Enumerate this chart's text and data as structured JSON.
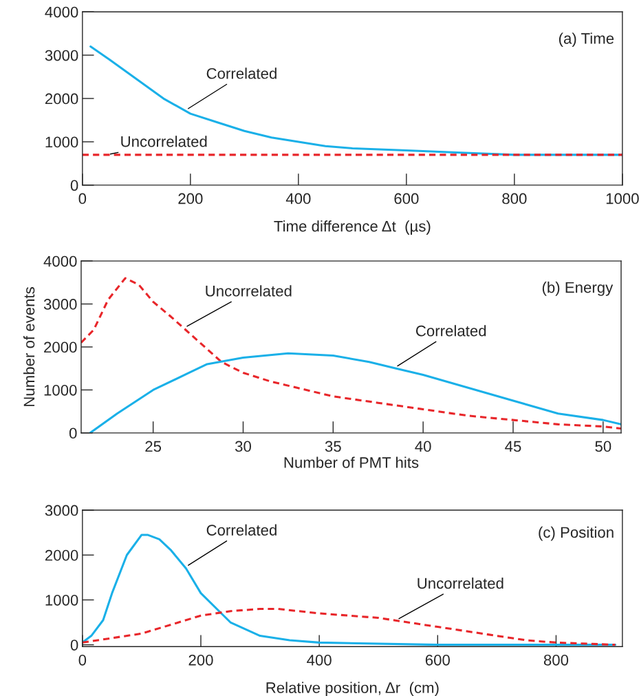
{
  "chart_data": [
    {
      "type": "line",
      "xlabel": "Time difference Δt  (µs)",
      "xlim": [
        0,
        1000
      ],
      "ylim": [
        0,
        4000
      ],
      "xticks": [
        0,
        200,
        400,
        600,
        800,
        1000
      ],
      "yticks": [
        0,
        1000,
        2000,
        3000,
        4000
      ],
      "grid": false,
      "legend": false,
      "annotations": [
        "(a) Time"
      ],
      "series": [
        {
          "name": "Correlated",
          "color": "#1ab0e8",
          "line_style": "solid",
          "x": [
            15,
            50,
            100,
            150,
            200,
            250,
            300,
            350,
            400,
            450,
            500,
            600,
            700,
            800,
            900,
            1000
          ],
          "values": [
            3200,
            2900,
            2450,
            2000,
            1650,
            1450,
            1250,
            1100,
            1000,
            900,
            850,
            800,
            750,
            700,
            700,
            700
          ]
        },
        {
          "name": "Uncorrelated",
          "color": "#e8262a",
          "line_style": "dashed",
          "x": [
            0,
            1000
          ],
          "values": [
            700,
            700
          ]
        }
      ]
    },
    {
      "type": "line",
      "xlabel": "Number of PMT hits",
      "ylabel": "Number of events",
      "xlim": [
        21,
        51
      ],
      "ylim": [
        0,
        4000
      ],
      "xticks": [
        25,
        30,
        35,
        40,
        45,
        50
      ],
      "yticks": [
        0,
        1000,
        2000,
        3000,
        4000
      ],
      "grid": false,
      "legend": false,
      "annotations": [
        "(b) Energy"
      ],
      "series": [
        {
          "name": "Uncorrelated",
          "color": "#e8262a",
          "line_style": "dashed",
          "x": [
            21,
            21.7,
            22.5,
            23.45,
            24.2,
            25,
            26,
            26.8,
            28,
            28.8,
            30,
            31.5,
            33,
            35,
            37.5,
            40,
            42.5,
            45,
            47.5,
            50,
            51
          ],
          "values": [
            2100,
            2400,
            3100,
            3600,
            3450,
            3050,
            2700,
            2400,
            1950,
            1650,
            1400,
            1200,
            1050,
            850,
            700,
            550,
            400,
            300,
            200,
            150,
            100
          ]
        },
        {
          "name": "Correlated",
          "color": "#1ab0e8",
          "line_style": "solid",
          "x": [
            21.5,
            23,
            25,
            27,
            28,
            30,
            32.5,
            35,
            37,
            38.5,
            40,
            42.5,
            45,
            47.5,
            50,
            51
          ],
          "values": [
            0,
            450,
            1000,
            1400,
            1600,
            1750,
            1850,
            1800,
            1650,
            1500,
            1350,
            1050,
            750,
            450,
            300,
            200
          ]
        }
      ]
    },
    {
      "type": "line",
      "xlabel": "Relative position, Δr  (cm)",
      "xlim": [
        0,
        912
      ],
      "ylim": [
        -40,
        3000
      ],
      "xticks": [
        0,
        200,
        400,
        600,
        800
      ],
      "yticks": [
        0,
        1000,
        2000,
        3000
      ],
      "grid": false,
      "legend": false,
      "annotations": [
        "(c) Position"
      ],
      "series": [
        {
          "name": "Correlated",
          "color": "#1ab0e8",
          "line_style": "solid",
          "x": [
            0,
            15,
            35,
            50,
            75,
            100,
            110,
            130,
            150,
            175,
            200,
            250,
            300,
            350,
            400,
            600,
            900
          ],
          "values": [
            50,
            200,
            550,
            1150,
            2000,
            2450,
            2450,
            2350,
            2100,
            1700,
            1150,
            500,
            200,
            100,
            50,
            0,
            0
          ]
        },
        {
          "name": "Uncorrelated",
          "color": "#e8262a",
          "line_style": "dashed",
          "x": [
            0,
            50,
            100,
            150,
            200,
            250,
            300,
            330,
            400,
            500,
            600,
            700,
            750,
            800,
            900
          ],
          "values": [
            50,
            150,
            250,
            450,
            650,
            750,
            800,
            800,
            700,
            600,
            400,
            200,
            100,
            50,
            0
          ]
        }
      ]
    }
  ]
}
